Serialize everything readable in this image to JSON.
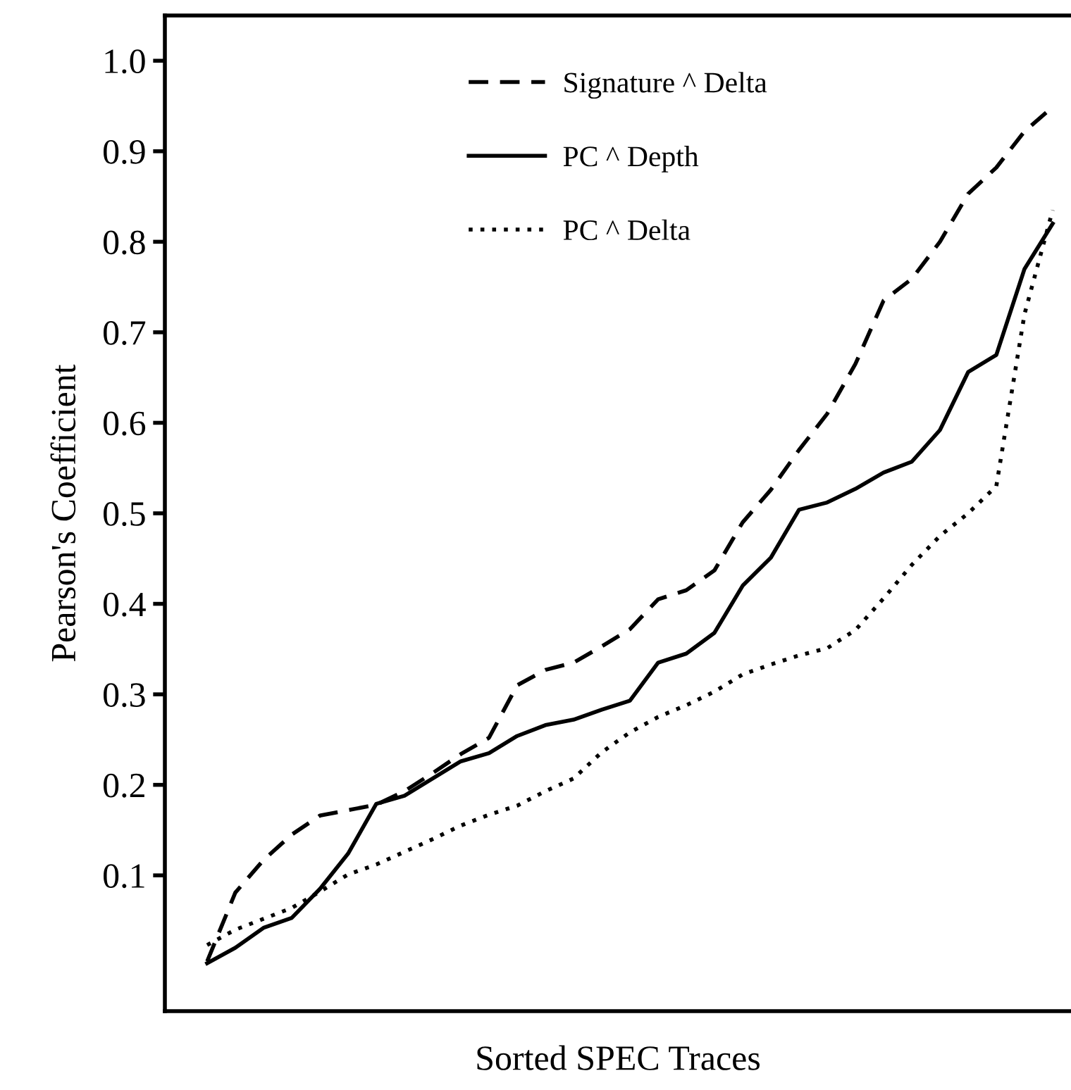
{
  "chart_data": {
    "type": "line",
    "xlabel": "Sorted SPEC Traces",
    "ylabel": "Pearson's Coefficient",
    "categories": [
      null,
      null,
      null,
      null,
      null,
      null,
      null,
      null,
      null,
      null,
      null,
      null,
      null,
      null,
      null,
      null,
      null,
      null,
      null,
      null,
      null,
      null,
      null,
      null,
      null,
      null,
      null,
      null,
      null,
      null,
      null
    ],
    "series": [
      {
        "name": "Signature ^ Delta",
        "color": "#000000",
        "line_style": "dashed",
        "values": [
          0.005,
          0.081,
          0.117,
          0.145,
          0.166,
          0.172,
          0.178,
          0.193,
          0.213,
          0.234,
          0.252,
          0.31,
          0.327,
          0.335,
          0.353,
          0.372,
          0.405,
          0.415,
          0.437,
          0.49,
          0.526,
          0.57,
          0.61,
          0.665,
          0.735,
          0.759,
          0.8,
          0.853,
          0.882,
          0.922,
          0.949
        ]
      },
      {
        "name": "PC ^ Depth",
        "color": "#000000",
        "line_style": "solid",
        "values": [
          0.003,
          0.02,
          0.042,
          0.053,
          0.085,
          0.124,
          0.179,
          0.188,
          0.207,
          0.226,
          0.235,
          0.254,
          0.266,
          0.272,
          0.283,
          0.293,
          0.335,
          0.345,
          0.368,
          0.42,
          0.451,
          0.504,
          0.512,
          0.527,
          0.545,
          0.557,
          0.592,
          0.656,
          0.675,
          0.77,
          0.82
        ]
      },
      {
        "name": "PC ^ Delta",
        "color": "#000000",
        "line_style": "dotted",
        "values": [
          0.023,
          0.04,
          0.052,
          0.064,
          0.082,
          0.101,
          0.112,
          0.126,
          0.14,
          0.155,
          0.167,
          0.177,
          0.193,
          0.207,
          0.236,
          0.258,
          0.275,
          0.288,
          0.303,
          0.322,
          0.333,
          0.343,
          0.351,
          0.371,
          0.406,
          0.443,
          0.475,
          0.5,
          0.53,
          0.72,
          0.835
        ]
      }
    ],
    "ylim": [
      -0.05,
      1.05
    ],
    "yticks": [
      0.1,
      0.2,
      0.3,
      0.4,
      0.5,
      0.6,
      0.7,
      0.8,
      0.9,
      {
        "value": 1.0,
        "label": "1.0"
      }
    ],
    "legend": "top",
    "grid": false,
    "marker": "none"
  }
}
